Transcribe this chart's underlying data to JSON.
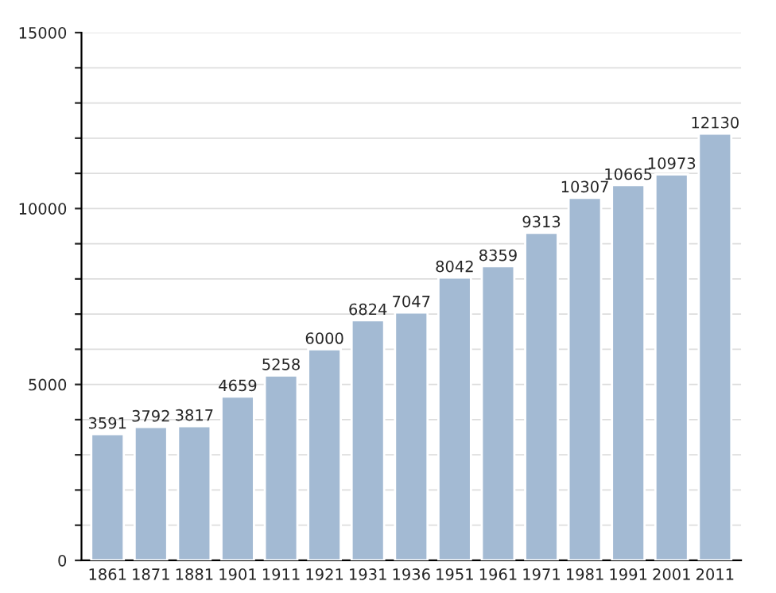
{
  "chart_data": {
    "type": "bar",
    "categories": [
      "1861",
      "1871",
      "1881",
      "1901",
      "1911",
      "1921",
      "1931",
      "1936",
      "1951",
      "1961",
      "1971",
      "1981",
      "1991",
      "2001",
      "2011"
    ],
    "values": [
      3591,
      3792,
      3817,
      4659,
      5258,
      6000,
      6824,
      7047,
      8042,
      8359,
      9313,
      10307,
      10665,
      10973,
      12130
    ],
    "color": "#a3bad3",
    "data_labels": true,
    "ylim": [
      0,
      15000
    ],
    "yticks": [
      0,
      {
        "value": 1000,
        "label": null
      },
      {
        "value": 2000,
        "label": null
      },
      {
        "value": 3000,
        "label": null
      },
      {
        "value": 4000,
        "label": null
      },
      5000,
      {
        "value": 6000,
        "label": null
      },
      {
        "value": 7000,
        "label": null
      },
      {
        "value": 8000,
        "label": null
      },
      {
        "value": 9000,
        "label": null
      },
      10000,
      {
        "value": 11000,
        "label": null
      },
      {
        "value": 12000,
        "label": null
      },
      {
        "value": 13000,
        "label": null
      },
      {
        "value": 14000,
        "label": null
      },
      15000
    ],
    "grid": "y"
  }
}
